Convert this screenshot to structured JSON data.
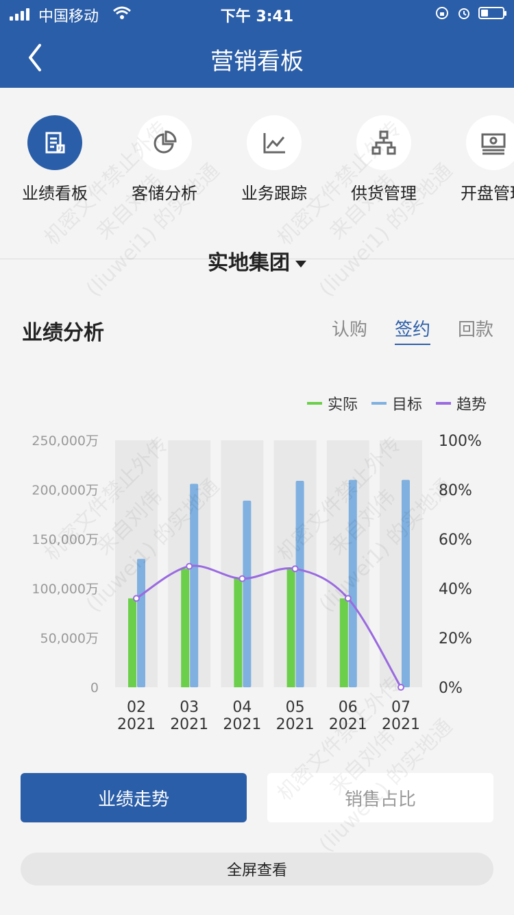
{
  "status": {
    "carrier": "中国移动",
    "time": "下午 3:41"
  },
  "nav": {
    "title": "营销看板"
  },
  "menu": [
    {
      "label": "业绩看板",
      "icon": "report-icon"
    },
    {
      "label": "客储分析",
      "icon": "pie-chart-icon"
    },
    {
      "label": "业务跟踪",
      "icon": "line-chart-icon"
    },
    {
      "label": "供货管理",
      "icon": "org-chart-icon"
    },
    {
      "label": "开盘管理",
      "icon": "cash-icon"
    }
  ],
  "company": "实地集团",
  "section": {
    "title": "业绩分析",
    "tabs": [
      "认购",
      "签约",
      "回款"
    ],
    "active_tab": "签约"
  },
  "colors": {
    "brand": "#2b5ea8",
    "actual": "#6ccf4b",
    "target": "#7fb0e0",
    "trend": "#9a6ae0"
  },
  "chart_data": {
    "type": "bar",
    "categories": [
      "02\n2021",
      "03\n2021",
      "04\n2021",
      "05\n2021",
      "06\n2021",
      "07\n2021"
    ],
    "category_labels": [
      [
        "02",
        "2021"
      ],
      [
        "03",
        "2021"
      ],
      [
        "04",
        "2021"
      ],
      [
        "05",
        "2021"
      ],
      [
        "06",
        "2021"
      ],
      [
        "07",
        "2021"
      ]
    ],
    "series": [
      {
        "name": "实际",
        "values": [
          90000,
          120000,
          110000,
          120000,
          90000,
          0
        ]
      },
      {
        "name": "目标",
        "values": [
          130000,
          206000,
          189000,
          209000,
          210000,
          210000
        ]
      },
      {
        "name": "趋势",
        "axis": "right",
        "values": [
          36,
          49,
          44,
          48,
          36,
          0
        ]
      }
    ],
    "y_left": {
      "ticks": [
        "250,000万",
        "200,000万",
        "150,000万",
        "100,000万",
        "50,000万",
        "0"
      ],
      "range": [
        0,
        250000
      ]
    },
    "y_right": {
      "ticks": [
        "100%",
        "80%",
        "60%",
        "40%",
        "20%",
        "0%"
      ],
      "range": [
        0,
        100
      ]
    },
    "legend_position": "top-right"
  },
  "buttons": {
    "primary": "业绩走势",
    "secondary": "销售占比",
    "fullscreen": "全屏查看"
  },
  "watermark": "机密文件禁止外传\n来自刘伟\n(liuwei1) 的实地通"
}
